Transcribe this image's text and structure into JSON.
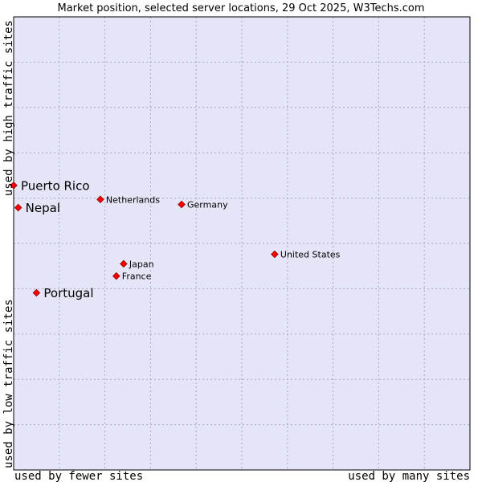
{
  "chart_data": {
    "type": "scatter",
    "title": "Market position, selected server locations, 29 Oct 2025, W3Techs.com",
    "xlabel_left": "used by fewer sites",
    "xlabel_right": "used by many sites",
    "ylabel_bottom": "used by low traffic sites",
    "ylabel_top": "used by high traffic sites",
    "xlim": [
      0,
      100
    ],
    "ylim": [
      0,
      100
    ],
    "grid": true,
    "colors": {
      "plot_bg": "#e4e6f8",
      "grid": "#a8a8c0",
      "border": "#000000",
      "point": "#ff0000",
      "text": "#000000"
    },
    "points": [
      {
        "name": "Puerto Rico",
        "x": 0.0,
        "y": 62.8,
        "emphasis": true
      },
      {
        "name": "Nepal",
        "x": 1.0,
        "y": 57.9,
        "emphasis": true
      },
      {
        "name": "Portugal",
        "x": 5.0,
        "y": 39.1,
        "emphasis": true
      },
      {
        "name": "Netherlands",
        "x": 19.0,
        "y": 59.7,
        "emphasis": false
      },
      {
        "name": "Germany",
        "x": 36.8,
        "y": 58.6,
        "emphasis": false
      },
      {
        "name": "United States",
        "x": 57.2,
        "y": 47.6,
        "emphasis": false
      },
      {
        "name": "Japan",
        "x": 24.1,
        "y": 45.5,
        "emphasis": false
      },
      {
        "name": "France",
        "x": 22.5,
        "y": 42.8,
        "emphasis": false
      }
    ]
  }
}
